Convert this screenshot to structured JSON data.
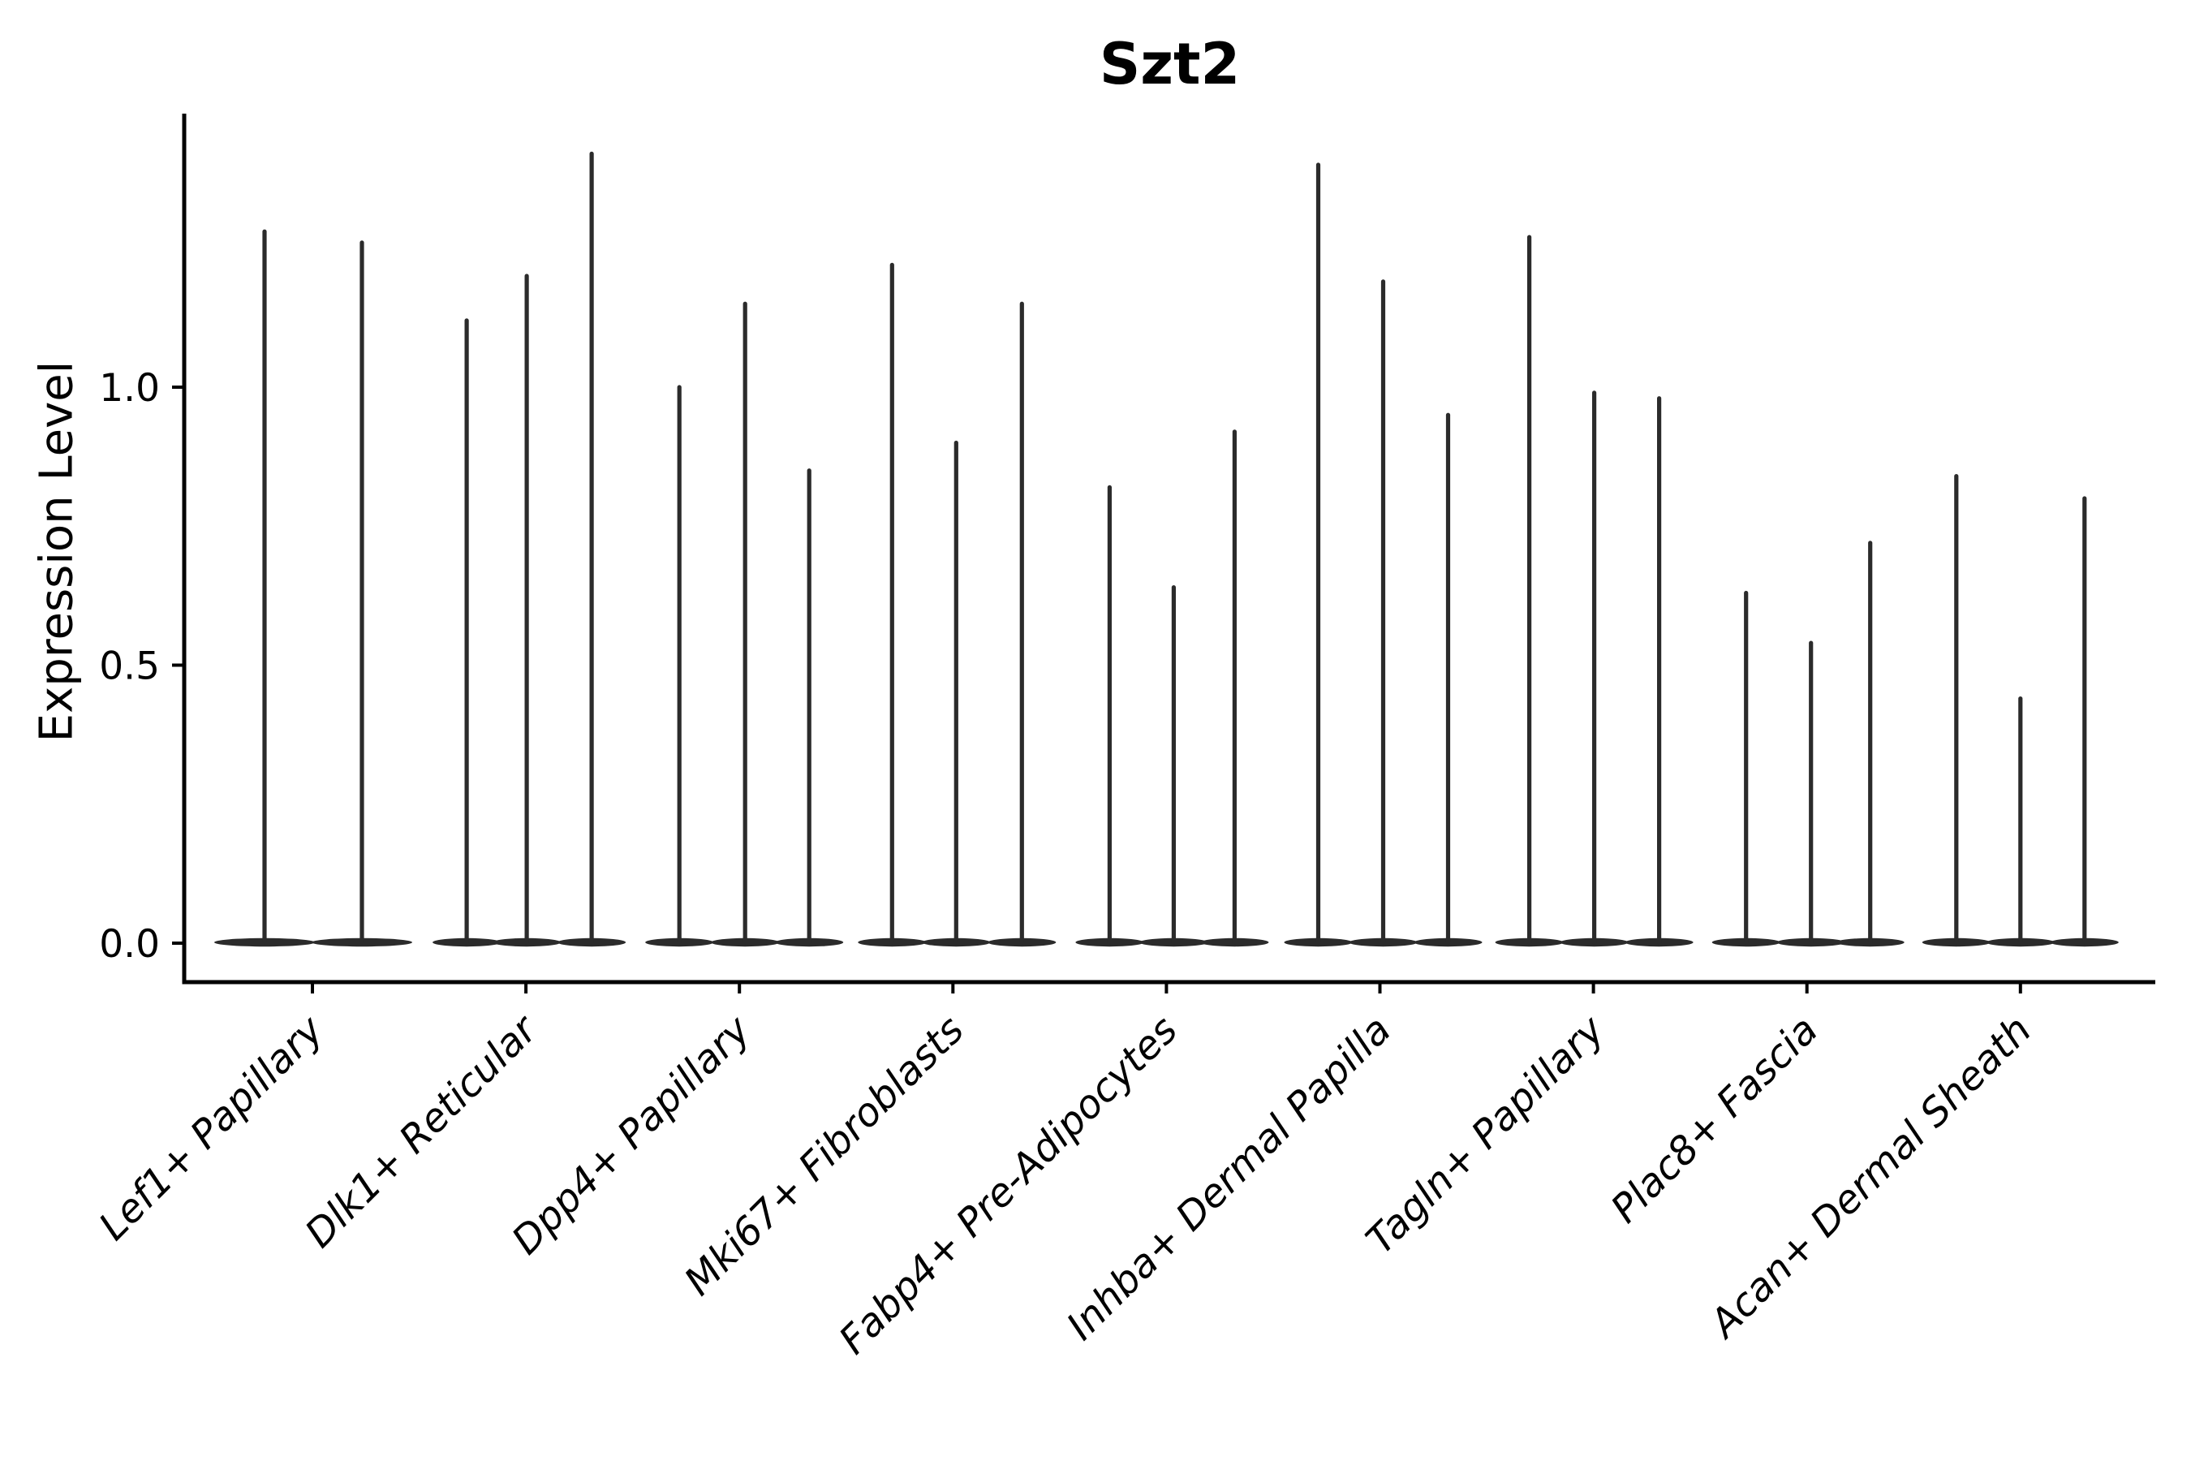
{
  "chart_data": {
    "type": "violin",
    "title": "Szt2",
    "ylabel": "Expression Level",
    "xlabel": "",
    "legend_position": "none",
    "grid": false,
    "background_color": "#ffffff",
    "violin_color": "#2b2b2b",
    "axis_color": "#000000",
    "ylim": [
      -0.07,
      1.49
    ],
    "yticks": [
      {
        "label": "0.0",
        "value": 0.0
      },
      {
        "label": "0.5",
        "value": 0.5
      },
      {
        "label": "1.0",
        "value": 1.0
      }
    ],
    "baseline_value": 0,
    "distribution_shape": "mass concentrated at 0 (flat lens at baseline) with a thin spike rising to each violin's maximum",
    "categories": [
      "Lef1+ Papillary",
      "Dlk1+ Reticular",
      "Dpp4+ Papillary",
      "Mki67+ Fibroblasts",
      "Fabp4+ Pre-Adipocytes",
      "Inhba+ Dermal Papilla",
      "Tagln+ Papillary",
      "Plac8+ Fascia",
      "Acan+ Dermal Sheath"
    ],
    "groups": [
      {
        "category": "Lef1+ Papillary",
        "violins": [
          {
            "x_offset": -59,
            "max": 1.28
          },
          {
            "x_offset": 61,
            "max": 1.26
          }
        ]
      },
      {
        "category": "Dlk1+ Reticular",
        "violins": [
          {
            "x_offset": -73,
            "max": 1.12
          },
          {
            "x_offset": 1,
            "max": 1.2
          },
          {
            "x_offset": 81,
            "max": 1.42
          }
        ]
      },
      {
        "category": "Dpp4+ Papillary",
        "violins": [
          {
            "x_offset": -74,
            "max": 1.0
          },
          {
            "x_offset": 7,
            "max": 1.15
          },
          {
            "x_offset": 86,
            "max": 0.85
          }
        ]
      },
      {
        "category": "Mki67+ Fibroblasts",
        "violins": [
          {
            "x_offset": -75,
            "max": 1.22
          },
          {
            "x_offset": 4,
            "max": 0.9
          },
          {
            "x_offset": 85,
            "max": 1.15
          }
        ]
      },
      {
        "category": "Fabp4+ Pre-Adipocytes",
        "violins": [
          {
            "x_offset": -70,
            "max": 0.82
          },
          {
            "x_offset": 9,
            "max": 0.64
          },
          {
            "x_offset": 84,
            "max": 0.92
          }
        ]
      },
      {
        "category": "Inhba+ Dermal Papilla",
        "violins": [
          {
            "x_offset": -76,
            "max": 1.4
          },
          {
            "x_offset": 4,
            "max": 1.19
          },
          {
            "x_offset": 84,
            "max": 0.95
          }
        ]
      },
      {
        "category": "Tagln+ Papillary",
        "violins": [
          {
            "x_offset": -79,
            "max": 1.27
          },
          {
            "x_offset": 1,
            "max": 0.99
          },
          {
            "x_offset": 81,
            "max": 0.98
          }
        ]
      },
      {
        "category": "Plac8+ Fascia",
        "violins": [
          {
            "x_offset": -75,
            "max": 0.63
          },
          {
            "x_offset": 5,
            "max": 0.54
          },
          {
            "x_offset": 78,
            "max": 0.72
          }
        ]
      },
      {
        "category": "Acan+ Dermal Sheath",
        "violins": [
          {
            "x_offset": -79,
            "max": 0.84
          },
          {
            "x_offset": 0,
            "max": 0.44
          },
          {
            "x_offset": 79,
            "max": 0.8
          }
        ]
      }
    ]
  }
}
